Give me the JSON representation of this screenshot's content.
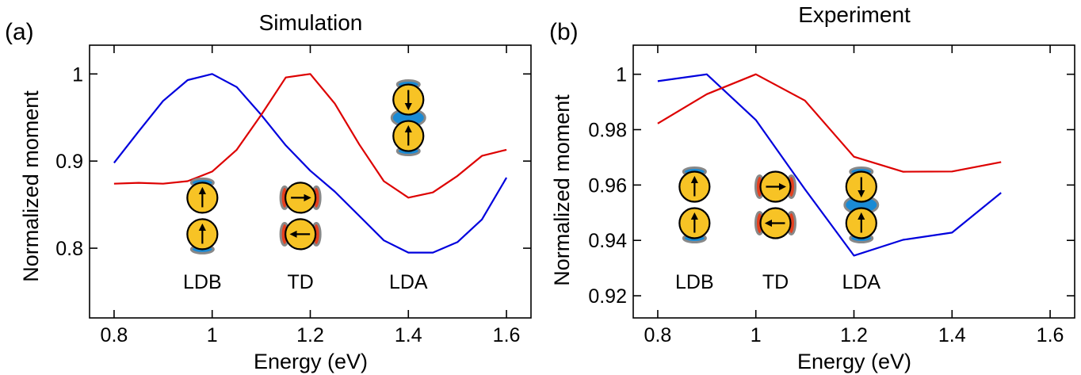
{
  "colors": {
    "blue_series": "#0000dd",
    "red_series": "#dd0000",
    "moment_fill": "#f7c325",
    "lobe_blue": "#1a8ad4",
    "lobe_red": "#e5401f",
    "lobe_edge": "#888888"
  },
  "chart_data": [
    {
      "type": "line",
      "panel_tag": "(a)",
      "title": "Simulation",
      "xlabel": "Energy (eV)",
      "ylabel": "Normalized moment",
      "xlim": [
        0.75,
        1.65
      ],
      "ylim": [
        0.72,
        1.033
      ],
      "xticks": [
        0.8,
        1.0,
        1.2,
        1.4,
        1.6
      ],
      "xtick_labels": [
        "0.8",
        "1",
        "1.2",
        "1.4",
        "1.6"
      ],
      "yticks": [
        0.8,
        0.9,
        1.0
      ],
      "ytick_labels": [
        "0.8",
        "0.9",
        "1"
      ],
      "grid": false,
      "series": [
        {
          "color": "blue",
          "x": [
            0.8,
            0.85,
            0.9,
            0.95,
            1.0,
            1.05,
            1.1,
            1.15,
            1.2,
            1.25,
            1.3,
            1.35,
            1.4,
            1.45,
            1.5,
            1.55,
            1.6
          ],
          "y": [
            0.898,
            0.934,
            0.969,
            0.993,
            1.0,
            0.985,
            0.953,
            0.918,
            0.889,
            0.865,
            0.837,
            0.809,
            0.795,
            0.795,
            0.807,
            0.833,
            0.881
          ]
        },
        {
          "color": "red",
          "x": [
            0.8,
            0.85,
            0.9,
            0.95,
            1.0,
            1.05,
            1.1,
            1.15,
            1.2,
            1.25,
            1.3,
            1.35,
            1.4,
            1.45,
            1.5,
            1.55,
            1.6
          ],
          "y": [
            0.874,
            0.875,
            0.874,
            0.877,
            0.888,
            0.913,
            0.953,
            0.996,
            1.0,
            0.966,
            0.919,
            0.877,
            0.858,
            0.864,
            0.883,
            0.906,
            0.913
          ]
        }
      ],
      "annotations": [
        {
          "label": "LDB",
          "icon": "ldb-moment-icon",
          "x": 0.98,
          "y": 0.837
        },
        {
          "label": "TD",
          "icon": "td-moment-icon",
          "x": 1.18,
          "y": 0.837
        },
        {
          "label": "LDA",
          "icon": "lda-moment-icon",
          "x": 1.4,
          "y": 0.9497
        }
      ]
    },
    {
      "type": "line",
      "panel_tag": "(b)",
      "title": "Experiment",
      "xlabel": "Energy (eV)",
      "ylabel": "Normalized moment",
      "xlim": [
        0.75,
        1.65
      ],
      "ylim": [
        0.912,
        1.0105
      ],
      "xticks": [
        0.8,
        1.0,
        1.2,
        1.4,
        1.6
      ],
      "xtick_labels": [
        "0.8",
        "1",
        "1.2",
        "1.4",
        "1.6"
      ],
      "yticks": [
        0.92,
        0.94,
        0.96,
        0.98,
        1.0
      ],
      "ytick_labels": [
        "0.92",
        "0.94",
        "0.96",
        "0.98",
        "1"
      ],
      "grid": false,
      "series": [
        {
          "color": "blue",
          "x": [
            0.8,
            0.9,
            1.0,
            1.1,
            1.2,
            1.3,
            1.4,
            1.5
          ],
          "y": [
            0.9975,
            1.0,
            0.9835,
            0.9585,
            0.9345,
            0.9402,
            0.9428,
            0.9572
          ]
        },
        {
          "color": "red",
          "x": [
            0.8,
            0.9,
            1.0,
            1.1,
            1.2,
            1.3,
            1.4,
            1.5
          ],
          "y": [
            0.9822,
            0.9928,
            1.0,
            0.9905,
            0.9702,
            0.9648,
            0.9649,
            0.9683
          ]
        }
      ],
      "annotations": [
        {
          "label": "LDB",
          "icon": "ldb-moment-icon",
          "x": 0.875,
          "y": 0.9528
        },
        {
          "label": "TD",
          "icon": "td-moment-icon",
          "x": 1.04,
          "y": 0.9528
        },
        {
          "label": "LDA",
          "icon": "lda-moment-icon",
          "x": 1.215,
          "y": 0.9528
        }
      ]
    }
  ]
}
